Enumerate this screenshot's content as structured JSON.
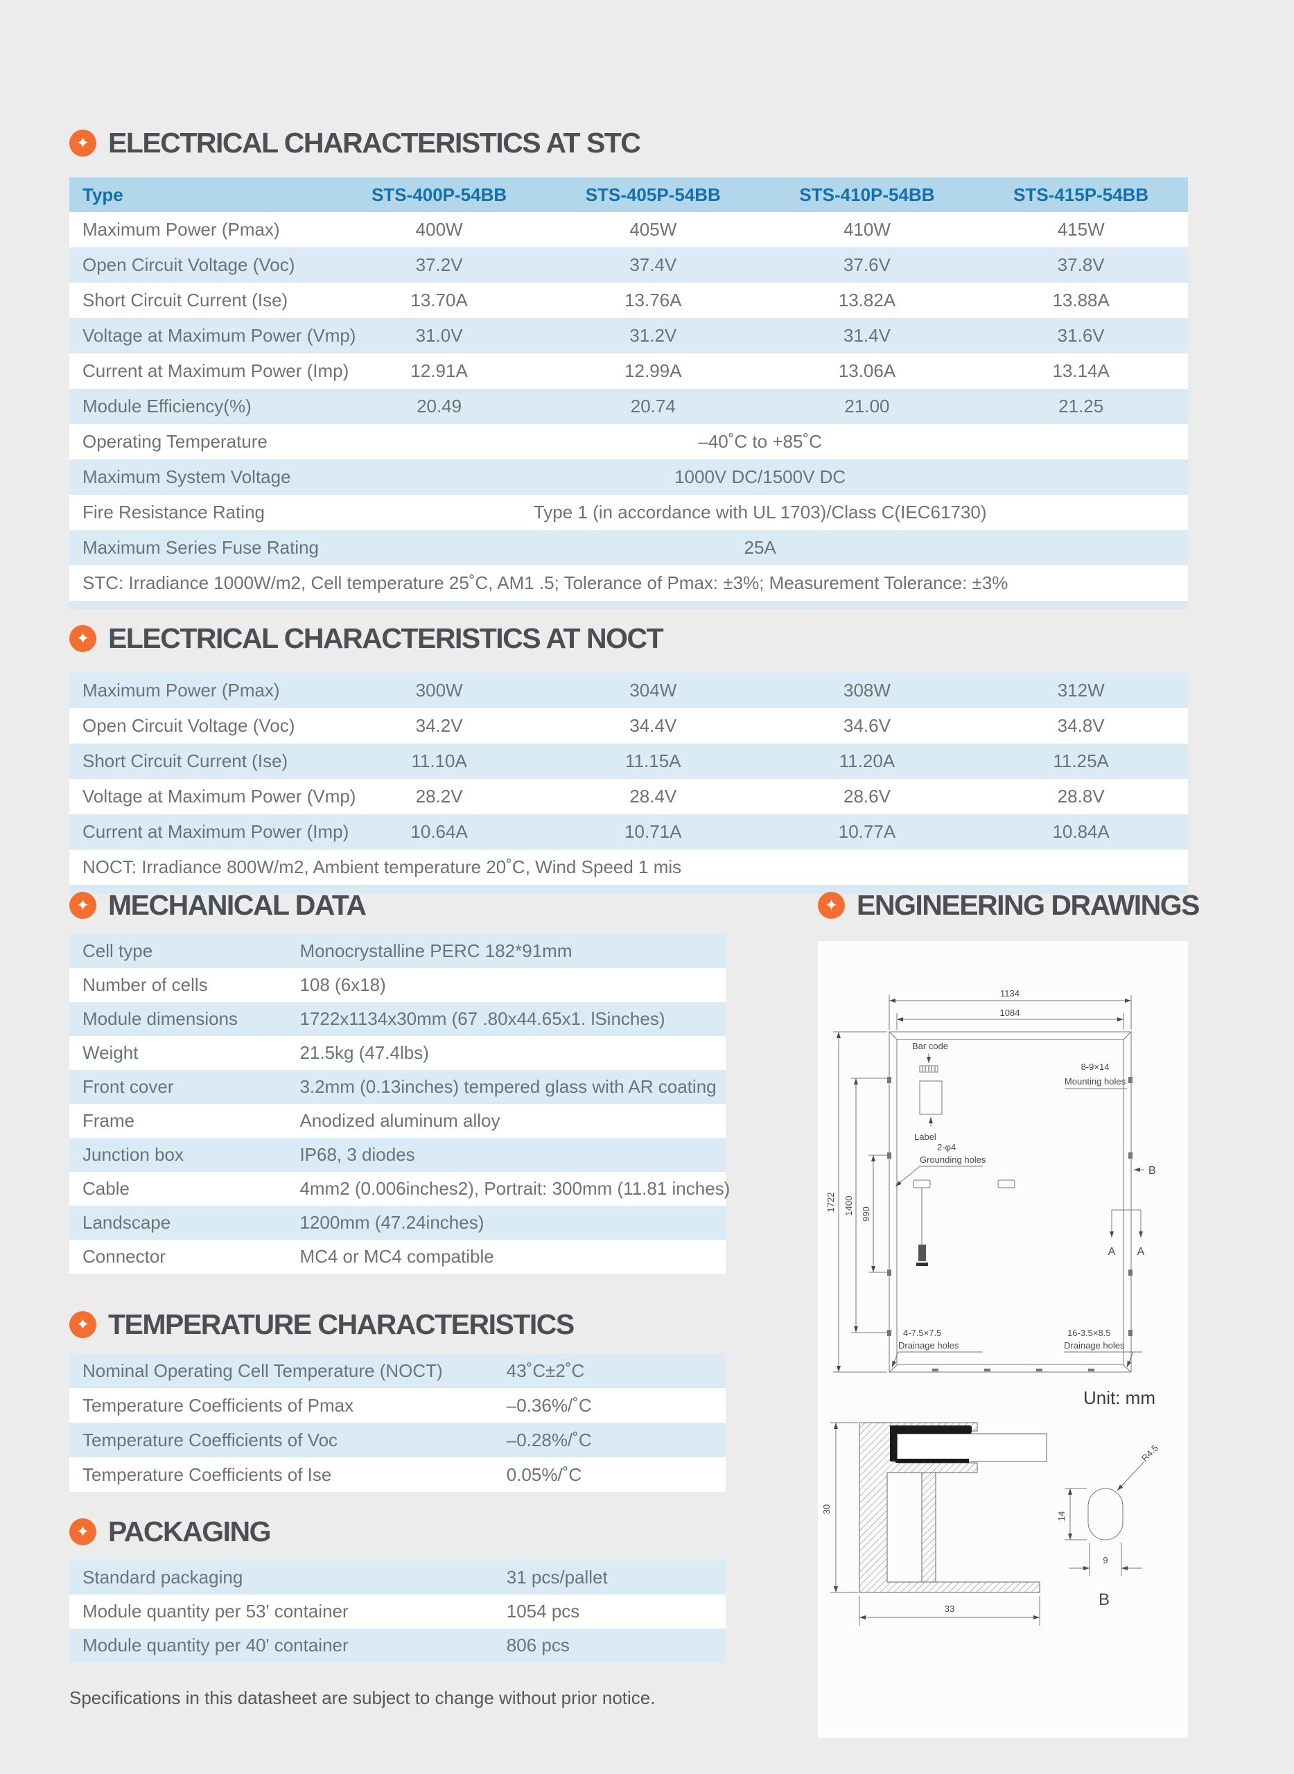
{
  "page": {
    "background": "#ECECEC",
    "accent_orange": "#F26F31",
    "header_blue": "#B2D7EA",
    "row_blue": "#DAEBF5",
    "header_text_blue": "#1470AD",
    "footer_note": "Specifications in this datasheet are subject to change without prior notice."
  },
  "stc": {
    "title": "ELECTRICAL CHARACTERISTICS AT STC",
    "table": {
      "cols": 5,
      "header": [
        "Type",
        "STS-400P-54BB",
        "STS-405P-54BB",
        "STS-410P-54BB",
        "STS-415P-54BB"
      ],
      "rows": [
        {
          "label": "Maximum Power (Pmax)",
          "values": [
            "400W",
            "405W",
            "410W",
            "415W"
          ]
        },
        {
          "label": "Open Circuit Voltage (Voc)",
          "values": [
            "37.2V",
            "37.4V",
            "37.6V",
            "37.8V"
          ]
        },
        {
          "label": "Short Circuit Current (Ise)",
          "values": [
            "13.70A",
            "13.76A",
            "13.82A",
            "13.88A"
          ]
        },
        {
          "label": "Voltage at Maximum Power (Vmp)",
          "values": [
            "31.0V",
            "31.2V",
            "31.4V",
            "31.6V"
          ]
        },
        {
          "label": "Current at Maximum Power (Imp)",
          "values": [
            "12.91A",
            "12.99A",
            "13.06A",
            "13.14A"
          ]
        },
        {
          "label": "Module Efficiency(%)",
          "values": [
            "20.49",
            "20.74",
            "21.00",
            "21.25"
          ]
        },
        {
          "label": "Operating Temperature",
          "span": "–40˚C to +85˚C"
        },
        {
          "label": "Maximum System Voltage",
          "span": "1000V DC/1500V DC"
        },
        {
          "label": "Fire Resistance Rating",
          "span": "Type 1 (in accordance with UL 1703)/Class C(IEC61730)"
        },
        {
          "label": "Maximum Series Fuse Rating",
          "span": "25A"
        },
        {
          "note": "STC: Irradiance 1000W/m2, Cell temperature 25˚C, AM1 .5; Tolerance of Pmax: ±3%; Measurement Tolerance: ±3%"
        },
        {
          "strip": true
        }
      ]
    }
  },
  "noct": {
    "title": "ELECTRICAL CHARACTERISTICS AT NOCT",
    "table": {
      "cols": 5,
      "rows": [
        {
          "label": "Maximum Power (Pmax)",
          "values": [
            "300W",
            "304W",
            "308W",
            "312W"
          ]
        },
        {
          "label": "Open Circuit Voltage (Voc)",
          "values": [
            "34.2V",
            "34.4V",
            "34.6V",
            "34.8V"
          ]
        },
        {
          "label": "Short Circuit Current (Ise)",
          "values": [
            "11.10A",
            "11.15A",
            "11.20A",
            "11.25A"
          ]
        },
        {
          "label": "Voltage at Maximum Power (Vmp)",
          "values": [
            "28.2V",
            "28.4V",
            "28.6V",
            "28.8V"
          ]
        },
        {
          "label": "Current at Maximum Power (Imp)",
          "values": [
            "10.64A",
            "10.71A",
            "10.77A",
            "10.84A"
          ]
        },
        {
          "note": "NOCT: Irradiance 800W/m2, Ambient temperature 20˚C, Wind Speed 1 mis"
        },
        {
          "strip": true
        }
      ]
    }
  },
  "mechanical": {
    "title": "MECHANICAL DATA",
    "table": {
      "cols": 2,
      "rows": [
        {
          "label": "Cell type",
          "value": "Monocrystalline PERC 182*91mm"
        },
        {
          "label": "Number of cells",
          "value": "108 (6x18)"
        },
        {
          "label": "Module dimensions",
          "value": "1722x1134x30mm (67 .80x44.65x1. lSinches)"
        },
        {
          "label": "Weight",
          "value": "21.5kg (47.4lbs)"
        },
        {
          "label": "Front cover",
          "value": "3.2mm (0.13inches) tempered glass with AR coating"
        },
        {
          "label": "Frame",
          "value": "Anodized aluminum alloy"
        },
        {
          "label": "Junction box",
          "value": "IP68, 3 diodes"
        },
        {
          "label": "Cable",
          "value": "4mm2 (0.006inches2), Portrait: 300mm (11.81 inches)"
        },
        {
          "label": "Landscape",
          "value": "1200mm (47.24inches)"
        },
        {
          "label": "Connector",
          "value": "MC4 or MC4 compatible"
        }
      ]
    }
  },
  "temperature": {
    "title": "TEMPERATURE CHARACTERISTICS",
    "table": {
      "cols": 2,
      "rows": [
        {
          "label": "Nominal Operating Cell Temperature (NOCT)",
          "value": "43˚C±2˚C"
        },
        {
          "label": "Temperature Coefficients of Pmax",
          "value": "–0.36%/˚C"
        },
        {
          "label": "Temperature Coefficients of Voc",
          "value": "–0.28%/˚C"
        },
        {
          "label": "Temperature Coefficients of Ise",
          "value": "0.05%/˚C"
        }
      ]
    }
  },
  "packaging": {
    "title": "PACKAGING",
    "table": {
      "cols": 2,
      "rows": [
        {
          "label": "Standard packaging",
          "value": "31 pcs/pallet"
        },
        {
          "label": "Module quantity per 53' container",
          "value": "1054 pcs"
        },
        {
          "label": "Module quantity per 40' container",
          "value": "806 pcs"
        }
      ]
    }
  },
  "drawings": {
    "title": "ENGINEERING DRAWINGS",
    "unit": "Unit:  mm",
    "dims": {
      "outer_width": "1134",
      "inner_width": "1084",
      "height": "1722",
      "holes_outer": "1400",
      "holes_inner": "990",
      "frame_height": "30",
      "frame_width": "33",
      "slot_height": "14",
      "slot_width": "9",
      "radius": "R4.5"
    },
    "labels": {
      "barcode": "Bar code",
      "label": "Label",
      "mounting1": "8-9×14",
      "mounting2": "Mounting holes",
      "grounding1": "2-φ4",
      "grounding2": "Grounding holes",
      "drain_left1": "4-7.5×7.5",
      "drain_left2": "Drainage holes",
      "drain_right1": "16-3.5×8.5",
      "drain_right2": "Drainage holes",
      "section_b": "B",
      "section_a": "A",
      "detail_b": "B"
    }
  }
}
